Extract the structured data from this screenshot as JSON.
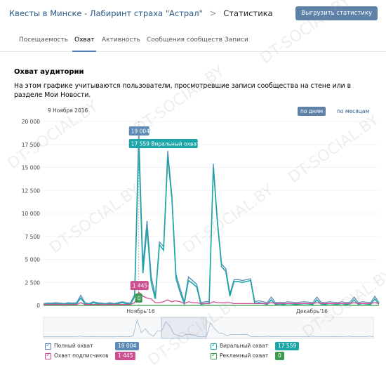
{
  "header": {
    "breadcrumb_group": "Квесты в Минске - Лабиринт страха \"Астрал\"",
    "breadcrumb_sep": ">",
    "breadcrumb_current": "Статистика",
    "export_label": "Выгрузить статистику"
  },
  "tabs": [
    "Посещаемость",
    "Охват",
    "Активность",
    "Сообщения сообществ",
    "Записи"
  ],
  "active_tab": "Охват",
  "section": {
    "title": "Охват аудитории",
    "description": "На этом графике учитываются пользователи, просмотревшие записи сообщества на стене или в разделе Мои Новости."
  },
  "chart_header": {
    "date": "9 Ноября 2016",
    "by_days": "по дням",
    "by_months": "по месяцам"
  },
  "tooltip": {
    "full": "19 004",
    "viral": "17 559 Виральный охват",
    "subscribers": "1 445",
    "ads": "0"
  },
  "colors": {
    "full": "#5b8bb5",
    "viral": "#1da6a8",
    "subscribers": "#cc4f8f",
    "ads": "#3c9b4f"
  },
  "chart_data": {
    "type": "line",
    "ylim": [
      0,
      20000
    ],
    "yticks": [
      "20 000",
      "17 500",
      "15 000",
      "12 500",
      "10 000",
      "7 500",
      "5 000",
      "2 500",
      "0"
    ],
    "xticks": [
      "Ноябрь'16",
      "Декабрь'16"
    ],
    "series": [
      {
        "name": "Полный охват",
        "key": "full",
        "values": [
          200,
          250,
          250,
          300,
          250,
          200,
          300,
          250,
          300,
          1100,
          300,
          200,
          400,
          300,
          250,
          200,
          300,
          200,
          300,
          400,
          300,
          250,
          1200,
          19004,
          4500,
          9200,
          3200,
          1000,
          6900,
          6400,
          16800,
          12000,
          3400,
          1800,
          400,
          3100,
          2700,
          2300,
          300,
          400,
          400,
          15400,
          9200,
          4500,
          4000,
          1300,
          2800,
          2800,
          2700,
          2800,
          2900,
          400,
          500,
          400,
          300,
          900,
          300,
          350,
          300,
          400,
          350,
          300,
          350,
          400,
          350,
          300,
          900,
          350,
          300,
          400,
          350,
          300,
          400,
          300,
          350,
          900,
          300,
          400,
          350,
          300,
          1000,
          300
        ]
      },
      {
        "name": "Виральный охват",
        "key": "viral",
        "values": [
          100,
          150,
          150,
          200,
          150,
          100,
          200,
          150,
          200,
          800,
          200,
          100,
          300,
          200,
          150,
          100,
          200,
          100,
          200,
          300,
          200,
          150,
          900,
          17559,
          3500,
          8400,
          2500,
          700,
          6600,
          6000,
          16200,
          11600,
          2900,
          1400,
          200,
          2700,
          2400,
          2000,
          100,
          200,
          200,
          15000,
          8900,
          4200,
          3700,
          1000,
          2600,
          2600,
          2500,
          2600,
          2700,
          200,
          300,
          200,
          100,
          600,
          100,
          150,
          100,
          200,
          150,
          100,
          150,
          200,
          150,
          100,
          600,
          150,
          100,
          200,
          150,
          100,
          200,
          100,
          150,
          600,
          100,
          200,
          150,
          100,
          700,
          100
        ]
      },
      {
        "name": "Охват подписчиков",
        "key": "subscribers",
        "values": [
          100,
          100,
          100,
          100,
          100,
          100,
          100,
          100,
          100,
          300,
          100,
          100,
          100,
          100,
          100,
          100,
          100,
          100,
          100,
          100,
          100,
          100,
          300,
          1445,
          1000,
          800,
          700,
          300,
          300,
          400,
          600,
          400,
          500,
          400,
          200,
          400,
          300,
          300,
          200,
          200,
          200,
          400,
          300,
          300,
          300,
          300,
          200,
          200,
          200,
          200,
          200,
          200,
          200,
          200,
          200,
          300,
          200,
          200,
          200,
          200,
          200,
          200,
          200,
          200,
          200,
          200,
          300,
          200,
          200,
          200,
          200,
          200,
          200,
          200,
          200,
          300,
          200,
          200,
          200,
          200,
          300,
          200
        ]
      },
      {
        "name": "Рекламный охват",
        "key": "ads",
        "values": [
          0,
          0,
          0,
          0,
          0,
          0,
          0,
          0,
          0,
          0,
          0,
          0,
          0,
          0,
          0,
          0,
          0,
          0,
          0,
          0,
          0,
          0,
          0,
          0,
          0,
          0,
          0,
          0,
          0,
          0,
          0,
          0,
          0,
          0,
          0,
          0,
          0,
          0,
          0,
          0,
          0,
          0,
          0,
          0,
          0,
          0,
          0,
          0,
          0,
          0,
          0,
          0,
          0,
          0,
          0,
          0,
          0,
          0,
          0,
          0,
          0,
          0,
          0,
          0,
          0,
          0,
          0,
          0,
          0,
          0,
          0,
          0,
          0,
          0,
          0,
          0,
          0,
          0,
          0,
          0,
          0,
          0
        ]
      }
    ],
    "highlight_index": 23
  },
  "legend": [
    {
      "label": "Полный охват",
      "value": "19 004",
      "key": "full"
    },
    {
      "label": "Охват подписчиков",
      "value": "1 445",
      "key": "subscribers"
    },
    {
      "label": "Виральный охват",
      "value": "17 559",
      "key": "viral"
    },
    {
      "label": "Рекламный охват",
      "value": "0",
      "key": "ads"
    }
  ],
  "watermark": "DT-SOCIAL.BY"
}
